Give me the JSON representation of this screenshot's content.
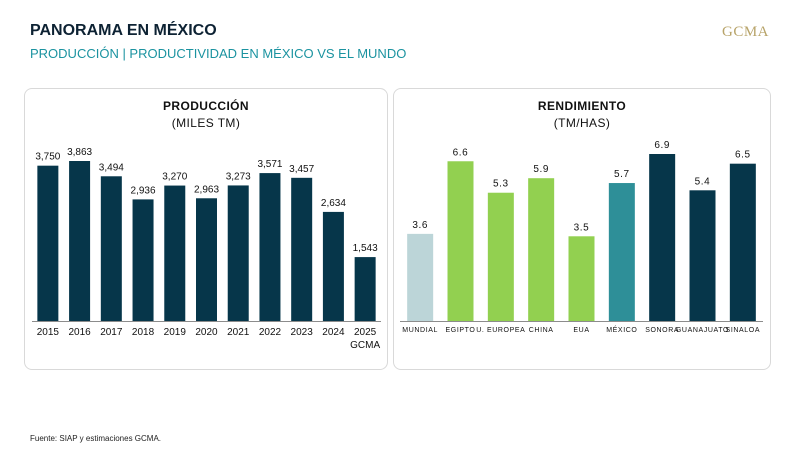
{
  "header": {
    "title": "PANORAMA EN MÉXICO",
    "subtitle": "PRODUCCIÓN | PRODUCTIVIDAD EN MÉXICO VS EL MUNDO",
    "logo": "GCMA"
  },
  "footer": {
    "source": "Fuente: SIAP y estimaciones GCMA."
  },
  "chart_data": [
    {
      "type": "bar",
      "title": "PRODUCCIÓN",
      "subtitle": "(MILES TM)",
      "categories": [
        "2015",
        "2016",
        "2017",
        "2018",
        "2019",
        "2020",
        "2021",
        "2022",
        "2023",
        "2024",
        "2025"
      ],
      "category_sublabels": [
        "",
        "",
        "",
        "",
        "",
        "",
        "",
        "",
        "",
        "",
        "GCMA"
      ],
      "values": [
        3750,
        3863,
        3494,
        2936,
        3270,
        2963,
        3273,
        3571,
        3457,
        2634,
        1543
      ],
      "value_labels": [
        "3,750",
        "3,863",
        "3,494",
        "2,936",
        "3,270",
        "2,963",
        "3,273",
        "3,571",
        "3,457",
        "2,634",
        "1,543"
      ],
      "ylim": [
        0,
        3863
      ],
      "grid": false,
      "legend": "none",
      "colors": [
        "#06364a"
      ]
    },
    {
      "type": "bar",
      "title": "RENDIMIENTO",
      "subtitle": "(TM/HAS)",
      "categories": [
        "MUNDIAL",
        "EGIPTO",
        "U. EUROPEA",
        "CHINA",
        "EUA",
        "MÉXICO",
        "SONORA",
        "GUANAJUATO",
        "SINALOA"
      ],
      "values": [
        3.6,
        6.6,
        5.3,
        5.9,
        3.5,
        5.7,
        6.9,
        5.4,
        6.5
      ],
      "value_labels": [
        "3.6",
        "6.6",
        "5.3",
        "5.9",
        "3.5",
        "5.7",
        "6.9",
        "5.4",
        "6.5"
      ],
      "ylim": [
        0,
        6.9
      ],
      "grid": false,
      "legend": "none",
      "colors": [
        "#bcd5d8",
        "#92d050",
        "#92d050",
        "#92d050",
        "#92d050",
        "#2e8f98",
        "#06364a",
        "#06364a",
        "#06364a"
      ]
    }
  ]
}
